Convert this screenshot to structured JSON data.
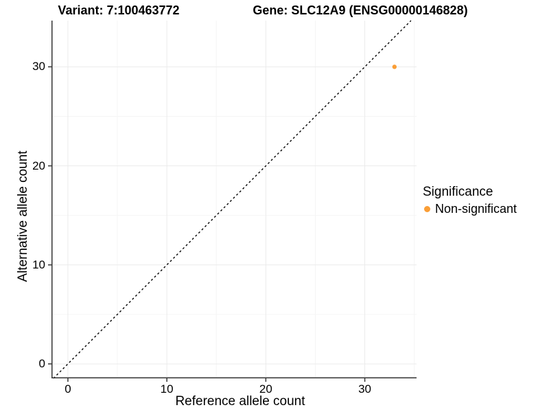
{
  "chart_data": {
    "type": "scatter",
    "title_left": "Variant: 7:100463772",
    "title_right": "Gene: SLC12A9 (ENSG00000146828)",
    "xlabel": "Reference allele count",
    "ylabel": "Alternative allele count",
    "xlim": [
      -1.66,
      35.23
    ],
    "ylim": [
      -1.46,
      34.67
    ],
    "x_ticks": [
      0,
      10,
      20,
      30
    ],
    "y_ticks": [
      0,
      10,
      20,
      30
    ],
    "x_minor_ticks": [
      5,
      15,
      25,
      35
    ],
    "y_minor_ticks": [
      5,
      15,
      25
    ],
    "grid": true,
    "points": [
      {
        "x": 33,
        "y": 30,
        "series": "Non-significant"
      }
    ],
    "reference_line": {
      "type": "identity",
      "slope": 1,
      "intercept": 0,
      "style": "dashed",
      "color": "#000000"
    },
    "legend": {
      "title": "Significance",
      "position": "right",
      "entries": [
        {
          "label": "Non-significant",
          "color": "#FA9E36"
        }
      ]
    },
    "colors": {
      "point": "#FA9E36",
      "grid_major": "#EBEBEB",
      "grid_minor": "#F5F5F5",
      "axis_line": "#333333",
      "tick_mark": "#333333",
      "background": "#FFFFFF"
    }
  }
}
